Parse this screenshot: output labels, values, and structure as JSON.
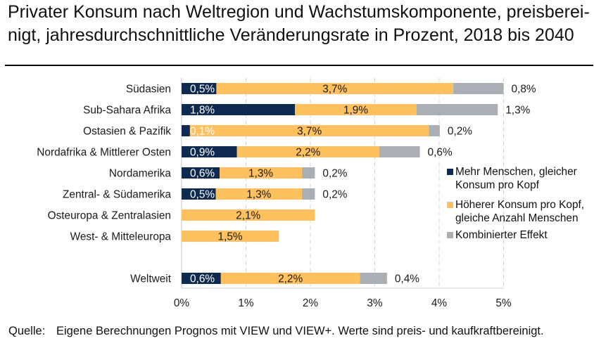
{
  "title": {
    "lines": [
      "Privater Konsum nach Weltregion und Wachstumskomponente, preisberei-",
      "nigt, jahresdurchschnittliche Veränderungsrate in Prozent, 2018 bis 2040"
    ]
  },
  "footer": {
    "label": "Quelle:",
    "text": "Eigene Berechnungen Prognos mit VIEW und VIEW+. Werte sind preis- und kaufkraftbereinigt."
  },
  "colors": {
    "navy": "#0E2A50",
    "orange": "#FFC05E",
    "gray": "#A9AFB5",
    "grid": "#D4D4D4",
    "text": "#1A1A1A"
  },
  "chart_data": {
    "type": "bar",
    "orientation": "horizontal",
    "stacked": true,
    "title": "Privater Konsum nach Weltregion und Wachstumskomponente, preisbereinigt, jahresdurchschnittliche Veränderungsrate in Prozent, 2018 bis 2040",
    "xlabel": "",
    "ylabel": "",
    "xlim": [
      0,
      5
    ],
    "x_ticks": [
      0,
      1,
      2,
      3,
      4,
      5
    ],
    "x_tick_labels": [
      "0%",
      "1%",
      "2%",
      "3%",
      "4%",
      "5%"
    ],
    "grid": "vertical dashed",
    "legend_position": "right",
    "total_category": "Weltweit",
    "categories": [
      "Südasien",
      "Sub-Sahara Afrika",
      "Ostasien & Pazifik",
      "Nordafrika & Mittlerer Osten",
      "Nordamerika",
      "Zentral- & Südamerika",
      "Osteuropa & Zentralasien",
      "West- & Mitteleuropa",
      "Weltweit"
    ],
    "series": [
      {
        "key": "population",
        "name": "Mehr Menschen, gleicher Konsum pro Kopf",
        "legend_lines": [
          "Mehr Menschen, gleicher",
          "Konsum pro Kopf"
        ],
        "color": "#0E2A50",
        "label_color": "#FFFFFF",
        "values": [
          0.54,
          1.76,
          0.13,
          0.86,
          0.59,
          0.53,
          0,
          0,
          0.61
        ],
        "labels": [
          "0,5%",
          "1,8%",
          "0,1%",
          "0,9%",
          "0,6%",
          "0,5%",
          null,
          null,
          "0,6%"
        ]
      },
      {
        "key": "per-capita",
        "name": "Höherer Konsum pro Kopf, gleiche Anzahl Menschen",
        "legend_lines": [
          "Höherer Konsum pro Kopf,",
          "gleiche Anzahl Menschen"
        ],
        "color": "#FFC05E",
        "label_color": "#1A1A1A",
        "values": [
          3.68,
          1.89,
          3.71,
          2.21,
          1.28,
          1.34,
          2.07,
          1.51,
          2.16
        ],
        "labels": [
          "3,7%",
          "1,9%",
          "3,7%",
          "2,2%",
          "1,3%",
          "1,3%",
          "2,1%",
          "1,5%",
          "2,2%"
        ]
      },
      {
        "key": "combined",
        "name": "Kombinierter Effekt",
        "legend_lines": [
          "Kombinierter Effekt"
        ],
        "color": "#A9AFB5",
        "label_color": "#1A1A1A",
        "values": [
          0.78,
          1.26,
          0.17,
          0.63,
          0.2,
          0.2,
          0,
          0,
          0.42
        ],
        "labels": [
          "0,8%",
          "1,3%",
          "0,2%",
          "0,6%",
          "0,2%",
          "0,2%",
          null,
          null,
          "0,4%"
        ]
      }
    ]
  }
}
